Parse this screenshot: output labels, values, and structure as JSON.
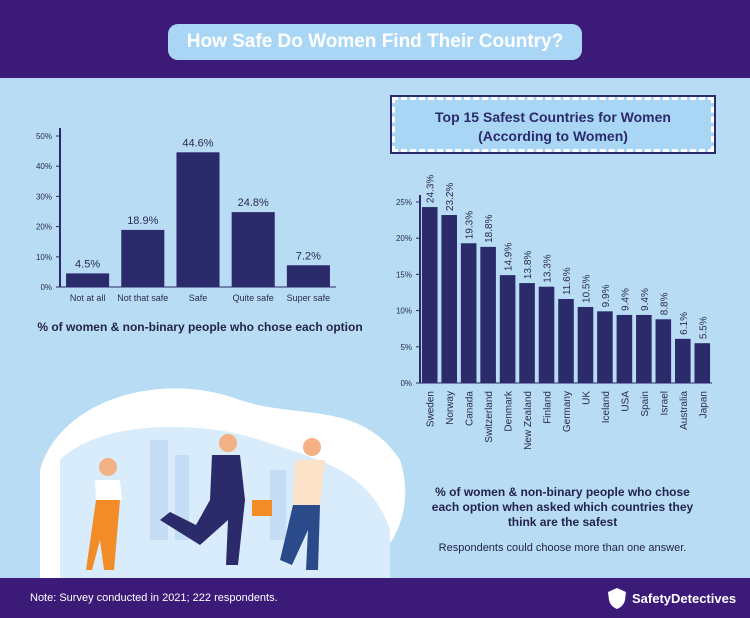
{
  "header": {
    "title": "How Safe Do Women Find Their Country?"
  },
  "chart_data": [
    {
      "type": "bar",
      "categories": [
        "Not at all",
        "Not that safe",
        "Safe",
        "Quite safe",
        "Super safe"
      ],
      "values": [
        4.5,
        18.9,
        44.6,
        24.8,
        7.2
      ],
      "value_labels": [
        "4.5%",
        "18.9%",
        "44.6%",
        "24.8%",
        "7.2%"
      ],
      "color": "#2b2a6b",
      "ylim": [
        0,
        50
      ],
      "yticks": [
        {
          "value": 0,
          "label": "0%"
        },
        {
          "value": 10,
          "label": "10%"
        },
        {
          "value": 20,
          "label": "20%"
        },
        {
          "value": 30,
          "label": "30%"
        },
        {
          "value": 40,
          "label": "40%"
        },
        {
          "value": 50,
          "label": "50%"
        }
      ],
      "caption": "% of women & non-binary people who chose each option"
    },
    {
      "type": "bar",
      "title": "Top 15 Safest Countries for Women",
      "subtitle": "(According to Women)",
      "categories": [
        "Sweden",
        "Norway",
        "Canada",
        "Switzerland",
        "Denmark",
        "New Zealand",
        "Finland",
        "Germany",
        "UK",
        "Iceland",
        "USA",
        "Spain",
        "Israel",
        "Australia",
        "Japan"
      ],
      "values": [
        24.3,
        23.2,
        19.3,
        18.8,
        14.9,
        13.8,
        13.3,
        11.6,
        10.5,
        9.9,
        9.4,
        9.4,
        8.8,
        6.1,
        5.5
      ],
      "value_labels": [
        "24.3%",
        "23.2%",
        "19.3%",
        "18.8%",
        "14.9%",
        "13.8%",
        "13.3%",
        "11.6%",
        "10.5%",
        "9.9%",
        "9.4%",
        "9.4%",
        "8.8%",
        "6.1%",
        "5.5%"
      ],
      "color": "#2b2a6b",
      "ylim": [
        0,
        25
      ],
      "yticks": [
        {
          "value": 0,
          "label": "0%"
        },
        {
          "value": 5,
          "label": "5%"
        },
        {
          "value": 10,
          "label": "10%"
        },
        {
          "value": 15,
          "label": "15%"
        },
        {
          "value": 20,
          "label": "20%"
        },
        {
          "value": 25,
          "label": "25%"
        }
      ],
      "caption": "% of women & non-binary people who chose each option when asked which countries they think are the safest",
      "note": "Respondents could choose more than one answer."
    }
  ],
  "footer": {
    "note": "Note: Survey conducted in 2021; 222 respondents.",
    "logo": "SafetyDetectives"
  }
}
